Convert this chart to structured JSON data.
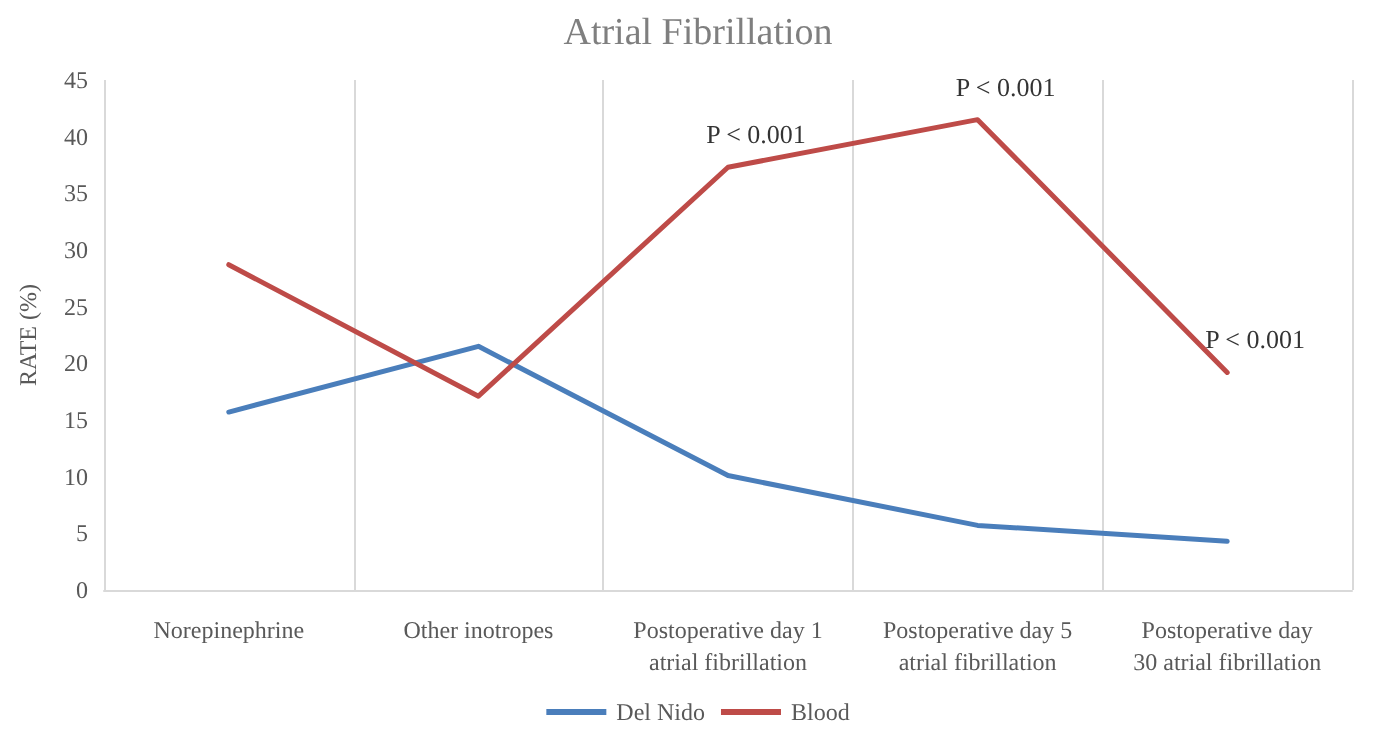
{
  "chart_data": {
    "type": "line",
    "title": "Atrial Fibrillation",
    "ylabel": "RATE (%)",
    "categories": [
      "Norepinephrine",
      "Other inotropes",
      "Postoperative day 1\natrial fibrillation",
      "Postoperative day 5\natrial fibrillation",
      "Postoperative day\n30 atrial fibrillation"
    ],
    "series": [
      {
        "name": "Del Nido",
        "color": "#4a7ebb",
        "values": [
          15.7,
          21.5,
          10.1,
          5.7,
          4.3
        ]
      },
      {
        "name": "Blood",
        "color": "#be4b48",
        "values": [
          28.7,
          17.1,
          37.3,
          41.5,
          19.2
        ]
      }
    ],
    "ylim": [
      0,
      45
    ],
    "yticks": [
      0,
      5,
      10,
      15,
      20,
      25,
      30,
      35,
      40,
      45
    ],
    "grid": "x",
    "legend": "bottom",
    "marker": "none",
    "line_style": "solid",
    "annotations": [
      {
        "text": "P < 0.001",
        "x": "Postoperative day 1\natrial fibrillation",
        "y": 37.3
      },
      {
        "text": "P < 0.001",
        "x": "Postoperative day 5\natrial fibrillation",
        "y": 41.5
      },
      {
        "text": "P < 0.001",
        "x": "Postoperative day\n30 atrial fibrillation",
        "y": 19.2
      }
    ]
  }
}
